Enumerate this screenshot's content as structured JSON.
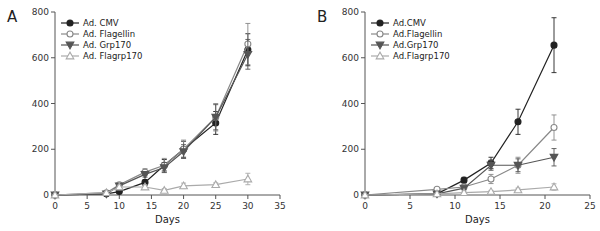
{
  "chart_data": [
    {
      "type": "line",
      "title": "A",
      "x_label": "Days",
      "x": [
        0,
        8,
        10,
        14,
        17,
        20,
        25,
        30
      ],
      "xlim": [
        0,
        35
      ],
      "ylim": [
        0,
        800
      ],
      "xticks": [
        0,
        5,
        10,
        15,
        20,
        25,
        30,
        35
      ],
      "yticks": [
        0,
        200,
        400,
        600,
        800
      ],
      "legend": "upper left",
      "grid": false,
      "series": [
        {
          "name": "Ad. CMV",
          "color": "#222222",
          "marker": "circle",
          "line_style": "solid",
          "values": [
            0,
            5,
            15,
            55,
            130,
            200,
            315,
            635
          ],
          "yerr": [
            0,
            3,
            5,
            12,
            25,
            35,
            50,
            70
          ]
        },
        {
          "name": "Ad. Flagellin",
          "color": "#888888",
          "marker": "circle-open",
          "line_style": "solid",
          "values": [
            0,
            10,
            45,
            100,
            130,
            200,
            340,
            660
          ],
          "yerr": [
            0,
            4,
            8,
            15,
            30,
            40,
            60,
            90
          ]
        },
        {
          "name": "Ad. Grp170",
          "color": "#555555",
          "marker": "triangle-down",
          "line_style": "solid",
          "values": [
            0,
            5,
            40,
            90,
            120,
            190,
            340,
            615
          ],
          "yerr": [
            0,
            3,
            6,
            12,
            22,
            30,
            55,
            65
          ]
        },
        {
          "name": "Ad. Flagrp170",
          "color": "#aaaaaa",
          "marker": "triangle-up-open",
          "line_style": "solid",
          "values": [
            0,
            10,
            35,
            35,
            20,
            40,
            45,
            70
          ],
          "yerr": [
            0,
            4,
            8,
            10,
            8,
            12,
            8,
            25
          ]
        }
      ]
    },
    {
      "type": "line",
      "title": "B",
      "x_label": "Days",
      "x": [
        0,
        8,
        11,
        14,
        17,
        21
      ],
      "xlim": [
        0,
        25
      ],
      "ylim": [
        0,
        800
      ],
      "xticks": [
        0,
        5,
        10,
        15,
        20,
        25
      ],
      "yticks": [
        0,
        200,
        400,
        600,
        800
      ],
      "legend": "upper left",
      "grid": false,
      "series": [
        {
          "name": "Ad.CMV",
          "color": "#222222",
          "marker": "circle",
          "line_style": "solid",
          "values": [
            0,
            5,
            65,
            140,
            320,
            655
          ],
          "yerr": [
            0,
            3,
            12,
            25,
            55,
            120
          ]
        },
        {
          "name": "Ad.Flagellin",
          "color": "#888888",
          "marker": "circle-open",
          "line_style": "solid",
          "values": [
            0,
            25,
            35,
            70,
            130,
            295
          ],
          "yerr": [
            0,
            7,
            10,
            20,
            35,
            55
          ]
        },
        {
          "name": "Ad.Grp170",
          "color": "#555555",
          "marker": "triangle-down",
          "line_style": "solid",
          "values": [
            0,
            5,
            30,
            130,
            130,
            165
          ],
          "yerr": [
            0,
            3,
            8,
            22,
            28,
            38
          ]
        },
        {
          "name": "Ad.Flagrp170",
          "color": "#aaaaaa",
          "marker": "triangle-up-open",
          "line_style": "solid",
          "values": [
            0,
            5,
            10,
            15,
            22,
            35
          ],
          "yerr": [
            0,
            3,
            4,
            5,
            8,
            14
          ]
        }
      ]
    }
  ]
}
